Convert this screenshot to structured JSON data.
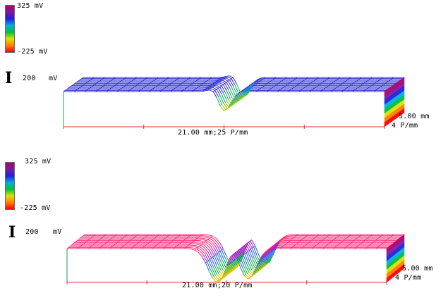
{
  "panels": [
    {
      "colorbar": {
        "max_label": "325 mV",
        "min_label": "-225 mV"
      },
      "scale_label": "200",
      "scale_unit": "mV",
      "x_label": "21.00 mm;25 P/mm",
      "depth_label": "5.00 mm",
      "y_density_label": "4 P/mm",
      "surface": {
        "base_level": "low",
        "dip_depth": "shallow",
        "base_color": "#2a2ad0"
      }
    },
    {
      "colorbar": {
        "max_label": "325 mV",
        "min_label": "-225 mV"
      },
      "scale_label": "200",
      "scale_unit": "mV",
      "x_label": "21.00 mm;20 P/mm",
      "depth_label": "5.00 mm",
      "y_density_label": "4 P/mm",
      "surface": {
        "base_level": "high",
        "dip_depth": "deep",
        "base_color": "#ff2a78"
      }
    }
  ],
  "colors": {
    "axis": "#e03030",
    "colorbar_gradient": [
      "#b0006a",
      "#7a1aa0",
      "#2020e0",
      "#00b0e0",
      "#00c040",
      "#e0e000",
      "#ff8000",
      "#ff0000"
    ]
  }
}
